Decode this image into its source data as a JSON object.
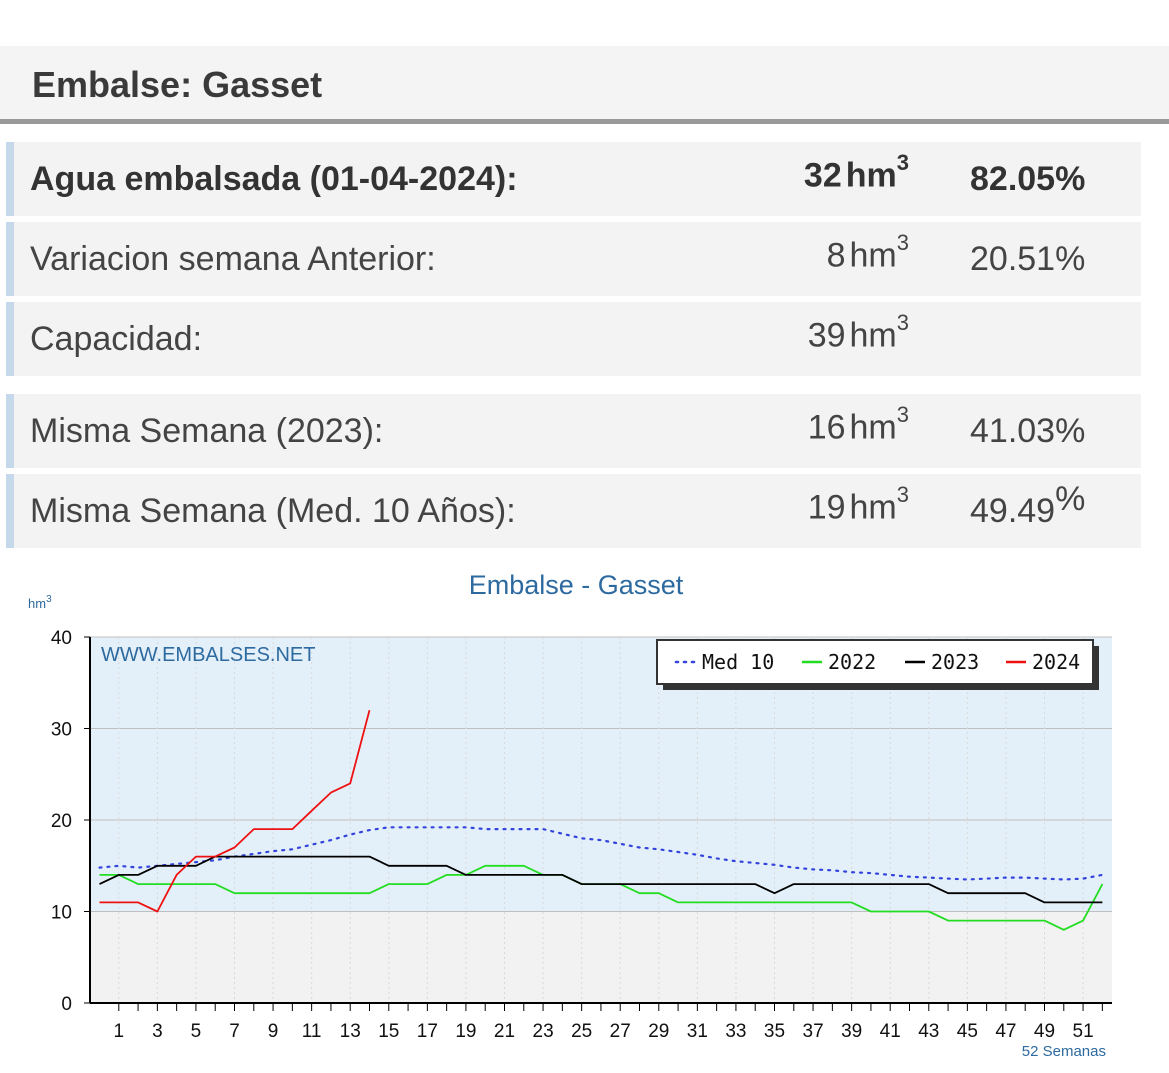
{
  "header": {
    "title": "Embalse: Gasset"
  },
  "stats": {
    "agua": {
      "label": "Agua embalsada (01-04-2024):",
      "value": "32",
      "unit": "hm",
      "exp": "3",
      "pct": "82.05%"
    },
    "variacion": {
      "label": "Variacion semana Anterior:",
      "value": "8",
      "unit": "hm",
      "exp": "3",
      "pct": "20.51%"
    },
    "capacidad": {
      "label": "Capacidad:",
      "value": "39",
      "unit": "hm",
      "exp": "3",
      "pct": ""
    },
    "misma2023": {
      "label": "Misma Semana (2023):",
      "value": "16",
      "unit": "hm",
      "exp": "3",
      "pct": "41.03%"
    },
    "med10": {
      "label": "Misma Semana (Med. 10 Años):",
      "value": "19",
      "unit": "hm",
      "exp": "3",
      "pct": "49.49",
      "pct_sign": "%"
    }
  },
  "chart_data": {
    "type": "line",
    "title": "Embalse - Gasset",
    "ylabel": "hm",
    "ylabel_exp": "3",
    "xlabel": "52 Semanas",
    "watermark": "WWW.EMBALSES.NET",
    "ylim": [
      0,
      40
    ],
    "yticks": [
      0,
      10,
      20,
      30,
      40
    ],
    "xlim": [
      0,
      53
    ],
    "xticks": [
      1,
      3,
      5,
      7,
      9,
      11,
      13,
      15,
      17,
      19,
      21,
      23,
      25,
      27,
      29,
      31,
      33,
      35,
      37,
      39,
      41,
      43,
      45,
      47,
      49,
      51
    ],
    "grid": true,
    "legend_position": "top-right",
    "series": [
      {
        "name": "Med 10",
        "color": "#3344dd",
        "style": "dotted",
        "x": [
          0,
          1,
          2,
          3,
          4,
          5,
          6,
          7,
          8,
          9,
          10,
          11,
          12,
          13,
          14,
          15,
          16,
          17,
          18,
          19,
          20,
          21,
          22,
          23,
          24,
          25,
          26,
          27,
          28,
          29,
          30,
          31,
          32,
          33,
          34,
          35,
          36,
          37,
          38,
          39,
          40,
          41,
          42,
          43,
          44,
          45,
          46,
          47,
          48,
          49,
          50,
          51,
          52
        ],
        "y": [
          14.8,
          15,
          14.8,
          15,
          15.2,
          15.4,
          15.6,
          16,
          16.3,
          16.6,
          16.8,
          17.3,
          17.8,
          18.4,
          18.9,
          19.2,
          19.2,
          19.2,
          19.2,
          19.2,
          19,
          19,
          19,
          19,
          18.5,
          18,
          17.8,
          17.4,
          17,
          16.8,
          16.5,
          16.2,
          15.8,
          15.5,
          15.3,
          15.1,
          14.8,
          14.6,
          14.5,
          14.3,
          14.2,
          14,
          13.8,
          13.7,
          13.6,
          13.5,
          13.6,
          13.7,
          13.7,
          13.6,
          13.5,
          13.6,
          14
        ]
      },
      {
        "name": "2022",
        "color": "#22dd22",
        "style": "solid",
        "x": [
          0,
          1,
          2,
          3,
          4,
          5,
          6,
          7,
          8,
          9,
          10,
          11,
          12,
          13,
          14,
          15,
          16,
          17,
          18,
          19,
          20,
          21,
          22,
          23,
          24,
          25,
          26,
          27,
          28,
          29,
          30,
          31,
          32,
          33,
          34,
          35,
          36,
          37,
          38,
          39,
          40,
          41,
          42,
          43,
          44,
          45,
          46,
          47,
          48,
          49,
          50,
          51,
          52
        ],
        "y": [
          14,
          14,
          13,
          13,
          13,
          13,
          13,
          12,
          12,
          12,
          12,
          12,
          12,
          12,
          12,
          13,
          13,
          13,
          14,
          14,
          15,
          15,
          15,
          14,
          14,
          13,
          13,
          13,
          12,
          12,
          11,
          11,
          11,
          11,
          11,
          11,
          11,
          11,
          11,
          11,
          10,
          10,
          10,
          10,
          9,
          9,
          9,
          9,
          9,
          9,
          8,
          9,
          13
        ]
      },
      {
        "name": "2023",
        "color": "#000000",
        "style": "solid",
        "x": [
          0,
          1,
          2,
          3,
          4,
          5,
          6,
          7,
          8,
          9,
          10,
          11,
          12,
          13,
          14,
          15,
          16,
          17,
          18,
          19,
          20,
          21,
          22,
          23,
          24,
          25,
          26,
          27,
          28,
          29,
          30,
          31,
          32,
          33,
          34,
          35,
          36,
          37,
          38,
          39,
          40,
          41,
          42,
          43,
          44,
          45,
          46,
          47,
          48,
          49,
          50,
          51,
          52
        ],
        "y": [
          13,
          14,
          14,
          15,
          15,
          15,
          16,
          16,
          16,
          16,
          16,
          16,
          16,
          16,
          16,
          15,
          15,
          15,
          15,
          14,
          14,
          14,
          14,
          14,
          14,
          13,
          13,
          13,
          13,
          13,
          13,
          13,
          13,
          13,
          13,
          12,
          13,
          13,
          13,
          13,
          13,
          13,
          13,
          13,
          12,
          12,
          12,
          12,
          12,
          11,
          11,
          11,
          11
        ]
      },
      {
        "name": "2024",
        "color": "#ee1111",
        "style": "solid",
        "x": [
          0,
          1,
          2,
          3,
          4,
          5,
          6,
          7,
          8,
          9,
          10,
          11,
          12,
          13,
          14
        ],
        "y": [
          11,
          11,
          11,
          10,
          14,
          16,
          16,
          17,
          19,
          19,
          19,
          21,
          23,
          24,
          32
        ]
      }
    ]
  }
}
